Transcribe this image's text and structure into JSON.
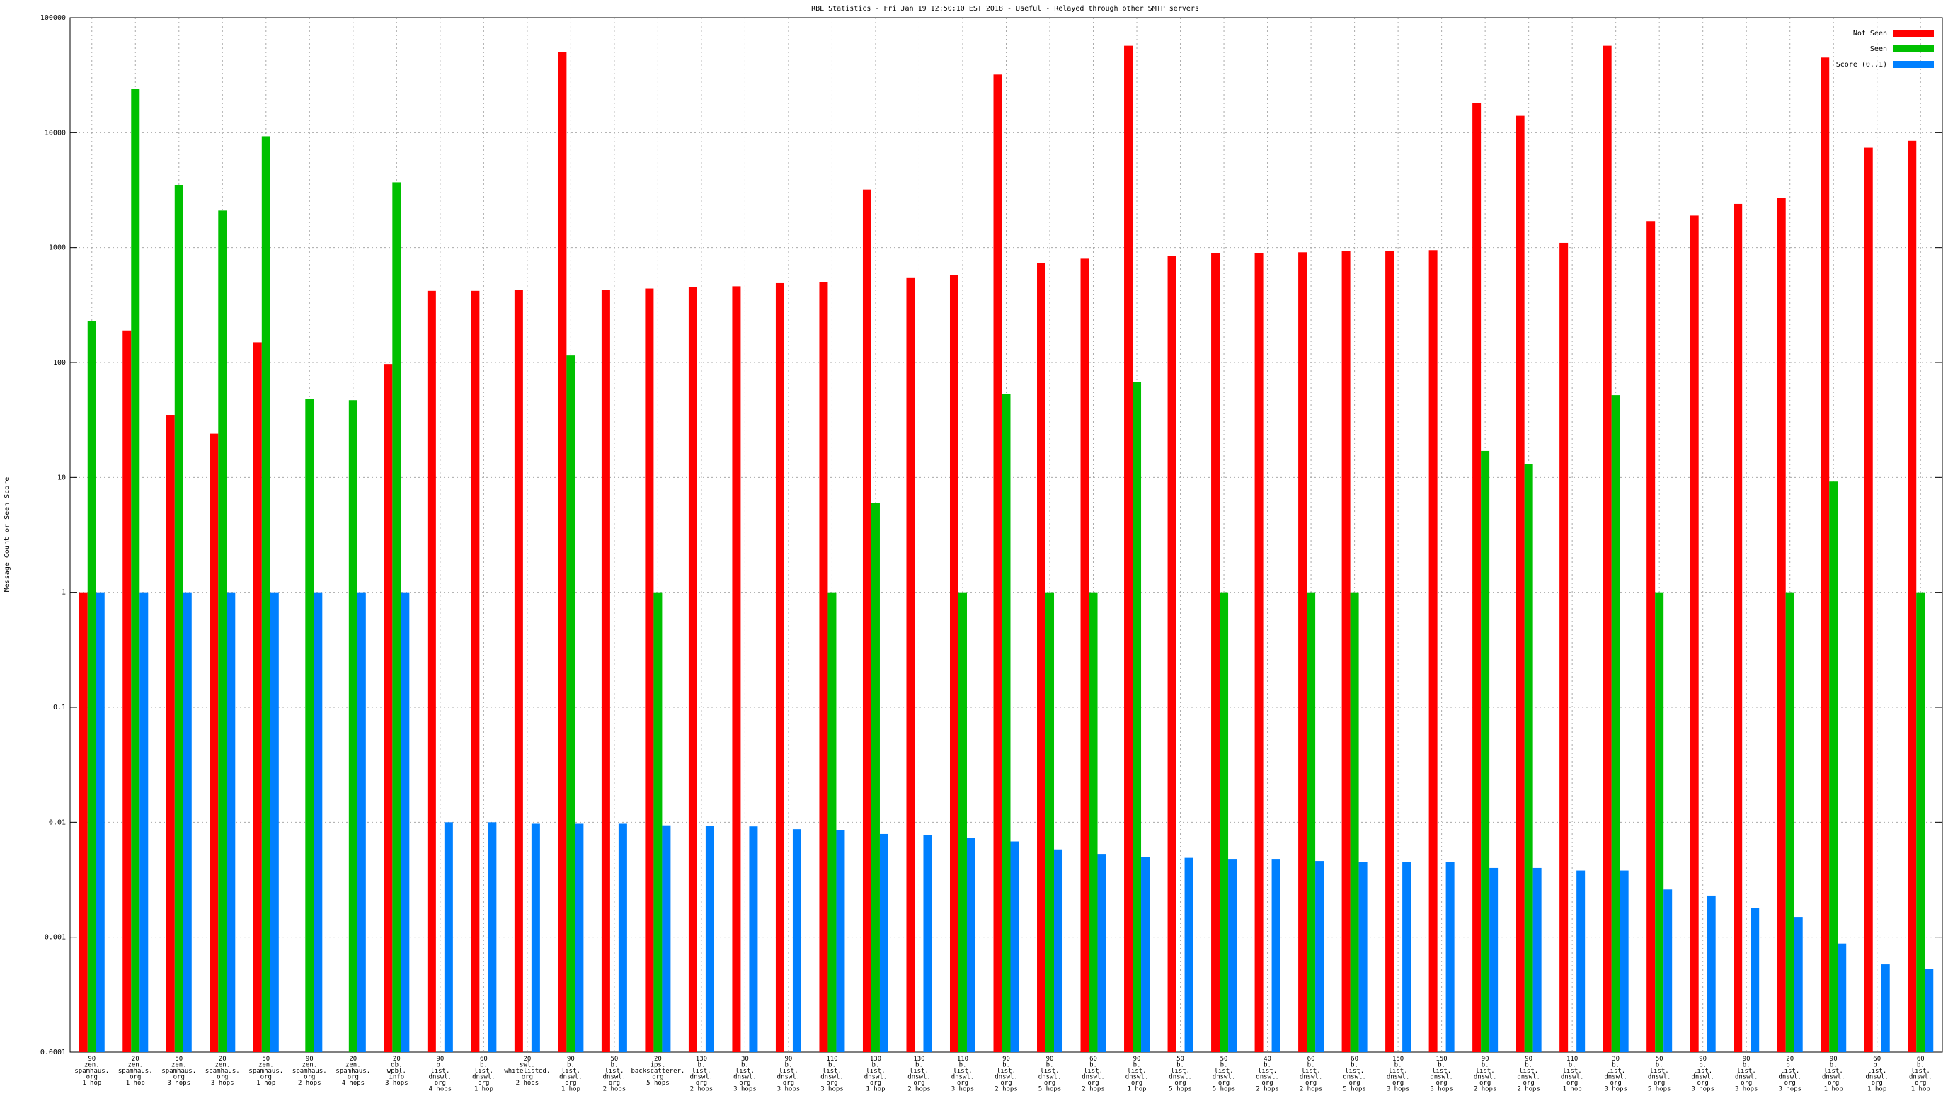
{
  "chart_data": {
    "type": "bar",
    "title": "RBL Statistics - Fri Jan 19 12:50:10 EST 2018 - Useful - Relayed through other SMTP servers",
    "ylabel": "Message Count or Seen Score",
    "categories": [
      "90\nzen.\nspamhaus.\norg\n1 hop",
      "20\nzen.\nspamhaus.\norg\n1 hop",
      "50\nzen.\nspamhaus.\norg\n3 hops",
      "20\nzen.\nspamhaus.\norg\n3 hops",
      "50\nzen.\nspamhaus.\norg\n1 hop",
      "90\nzen.\nspamhaus.\norg\n2 hops",
      "20\nzen.\nspamhaus.\norg\n4 hops",
      "20\ndb.\nwpbl.\ninfo\n3 hops",
      "90\nb.\nlist.\ndnswl.\norg\n4 hops",
      "60\nb.\nlist.\ndnswl.\norg\n1 hop",
      "20\nswl.\nwhitelisted.\norg\n2 hops",
      "90\nb.\nlist.\ndnswl.\norg\n1 hop",
      "50\nb.\nlist.\ndnswl.\norg\n2 hops",
      "20\nips.\nbackscatterer.\norg\n5 hops",
      "130\nb.\nlist.\ndnswl.\norg\n2 hops",
      "30\nb.\nlist.\ndnswl.\norg\n3 hops",
      "90\nb.\nlist.\ndnswl.\norg\n3 hops",
      "110\nb.\nlist.\ndnswl.\norg\n3 hops",
      "130\nb.\nlist.\ndnswl.\norg\n1 hop",
      "130\nb.\nlist.\ndnswl.\norg\n2 hops",
      "110\nb.\nlist.\ndnswl.\norg\n3 hops",
      "90\nb.\nlist.\ndnswl.\norg\n2 hops",
      "90\nb.\nlist.\ndnswl.\norg\n5 hops",
      "60\nb.\nlist.\ndnswl.\norg\n2 hops",
      "90\nb.\nlist.\ndnswl.\norg\n1 hop",
      "50\nb.\nlist.\ndnswl.\norg\n5 hops",
      "50\nb.\nlist.\ndnswl.\norg\n5 hops",
      "40\nb.\nlist.\ndnswl.\norg\n2 hops",
      "60\nb.\nlist.\ndnswl.\norg\n2 hops",
      "60\nb.\nlist.\ndnswl.\norg\n5 hops",
      "150\nb.\nlist.\ndnswl.\norg\n3 hops",
      "150\nb.\nlist.\ndnswl.\norg\n3 hops",
      "90\nb.\nlist.\ndnswl.\norg\n2 hops",
      "90\nb.\nlist.\ndnswl.\norg\n2 hops",
      "110\nb.\nlist.\ndnswl.\norg\n1 hop",
      "30\nb.\nlist.\ndnswl.\norg\n3 hops",
      "50\nb.\nlist.\ndnswl.\norg\n5 hops",
      "90\nb.\nlist.\ndnswl.\norg\n3 hops",
      "90\nb.\nlist.\ndnswl.\norg\n3 hops",
      "20\nb.\nlist.\ndnswl.\norg\n3 hops",
      "90\nb.\nlist.\ndnswl.\norg\n1 hop",
      "60\nb.\nlist.\ndnswl.\norg\n1 hop",
      "60\nb.\nlist.\ndnswl.\norg\n1 hop"
    ],
    "series": [
      {
        "name": "Not Seen",
        "color": "#ff0000",
        "values": [
          1,
          190,
          35,
          24,
          150,
          null,
          null,
          97,
          420,
          420,
          430,
          50000,
          430,
          440,
          450,
          460,
          490,
          500,
          3200,
          550,
          580,
          32000,
          730,
          800,
          57000,
          850,
          890,
          890,
          910,
          930,
          930,
          950,
          18000,
          14000,
          1100,
          57000,
          1700,
          1900,
          2400,
          2700,
          45000,
          7400,
          8500
        ]
      },
      {
        "name": "Seen",
        "color": "#00c000",
        "values": [
          230,
          24000,
          3500,
          2100,
          9300,
          48,
          47,
          3700,
          null,
          null,
          null,
          115,
          null,
          1,
          null,
          null,
          null,
          1,
          6,
          null,
          1,
          53,
          1,
          1,
          68,
          null,
          1,
          null,
          1,
          1,
          null,
          null,
          17,
          13,
          null,
          52,
          1,
          null,
          null,
          1,
          9.2,
          null,
          1
        ]
      },
      {
        "name": "Score (0..1)",
        "color": "#0080ff",
        "values": [
          1,
          1,
          1,
          1,
          1,
          1,
          1,
          1,
          0.01,
          0.01,
          0.0097,
          0.0097,
          0.0097,
          0.0094,
          0.0093,
          0.0092,
          0.0087,
          0.0085,
          0.0079,
          0.0077,
          0.0073,
          0.0068,
          0.0058,
          0.0053,
          0.005,
          0.0049,
          0.0048,
          0.0048,
          0.0046,
          0.0045,
          0.0045,
          0.0045,
          0.004,
          0.004,
          0.0038,
          0.0038,
          0.0026,
          0.0023,
          0.0018,
          0.0015,
          0.00088,
          0.00058,
          0.00053
        ]
      }
    ],
    "ylim": [
      0.0001,
      100000
    ],
    "yticks": [
      0.0001,
      0.001,
      0.01,
      0.1,
      1,
      10,
      100,
      1000,
      10000,
      100000
    ],
    "log_scale": true,
    "grid": true,
    "legend": "top-right"
  }
}
